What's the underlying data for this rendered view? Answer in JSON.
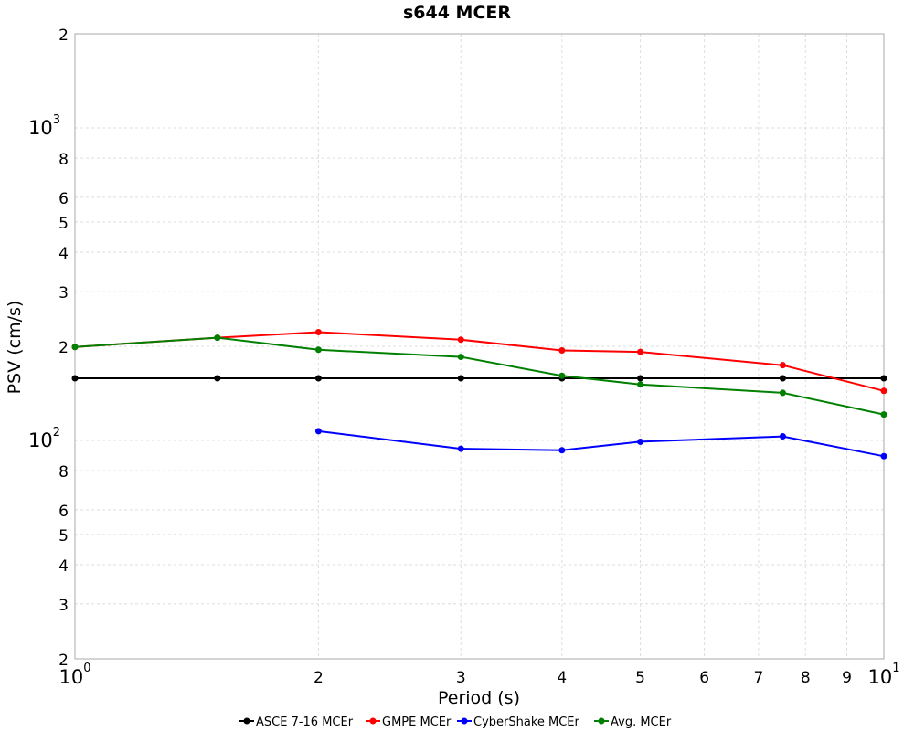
{
  "chart_data": {
    "type": "line",
    "title": "s644 MCER",
    "xlabel": "Period (s)",
    "ylabel": "PSV (cm/s)",
    "x_scale": "log",
    "y_scale": "log",
    "xlim": [
      1,
      10
    ],
    "ylim": [
      20,
      2000
    ],
    "grid": true,
    "legend_position": "bottom",
    "x_ticks": [
      {
        "value": 1,
        "label": "10",
        "exp": "0"
      },
      {
        "value": 2,
        "label": "2",
        "exp": ""
      },
      {
        "value": 3,
        "label": "3",
        "exp": ""
      },
      {
        "value": 4,
        "label": "4",
        "exp": ""
      },
      {
        "value": 5,
        "label": "5",
        "exp": ""
      },
      {
        "value": 6,
        "label": "6",
        "exp": ""
      },
      {
        "value": 7,
        "label": "7",
        "exp": ""
      },
      {
        "value": 8,
        "label": "8",
        "exp": ""
      },
      {
        "value": 9,
        "label": "9",
        "exp": ""
      },
      {
        "value": 10,
        "label": "10",
        "exp": "1"
      }
    ],
    "y_ticks": [
      {
        "value": 20,
        "label": "2",
        "exp": ""
      },
      {
        "value": 30,
        "label": "3",
        "exp": ""
      },
      {
        "value": 40,
        "label": "4",
        "exp": ""
      },
      {
        "value": 50,
        "label": "5",
        "exp": ""
      },
      {
        "value": 60,
        "label": "6",
        "exp": ""
      },
      {
        "value": 80,
        "label": "8",
        "exp": ""
      },
      {
        "value": 100,
        "label": "10",
        "exp": "2"
      },
      {
        "value": 200,
        "label": "2",
        "exp": ""
      },
      {
        "value": 300,
        "label": "3",
        "exp": ""
      },
      {
        "value": 400,
        "label": "4",
        "exp": ""
      },
      {
        "value": 500,
        "label": "5",
        "exp": ""
      },
      {
        "value": 600,
        "label": "6",
        "exp": ""
      },
      {
        "value": 800,
        "label": "8",
        "exp": ""
      },
      {
        "value": 1000,
        "label": "10",
        "exp": "3"
      },
      {
        "value": 2000,
        "label": "2",
        "exp": ""
      }
    ],
    "series": [
      {
        "name": "ASCE 7-16 MCEr",
        "color": "#000000",
        "x": [
          1,
          1.5,
          2,
          3,
          4,
          5,
          7.5,
          10
        ],
        "y": [
          158,
          158,
          158,
          158,
          158,
          158,
          158,
          158
        ]
      },
      {
        "name": "GMPE MCEr",
        "color": "#ff0000",
        "x": [
          1,
          1.5,
          2,
          3,
          4,
          5,
          7.5,
          10
        ],
        "y": [
          199,
          213,
          222,
          210,
          194,
          192,
          174,
          144
        ]
      },
      {
        "name": "CyberShake MCEr",
        "color": "#0000ff",
        "x": [
          2,
          3,
          4,
          5,
          7.5,
          10
        ],
        "y": [
          107,
          94,
          93,
          99,
          103,
          89
        ]
      },
      {
        "name": "Avg. MCEr",
        "color": "#008000",
        "x": [
          1,
          1.5,
          2,
          3,
          4,
          5,
          7.5,
          10
        ],
        "y": [
          199,
          213,
          195,
          185,
          161,
          151,
          142,
          121
        ]
      }
    ]
  }
}
